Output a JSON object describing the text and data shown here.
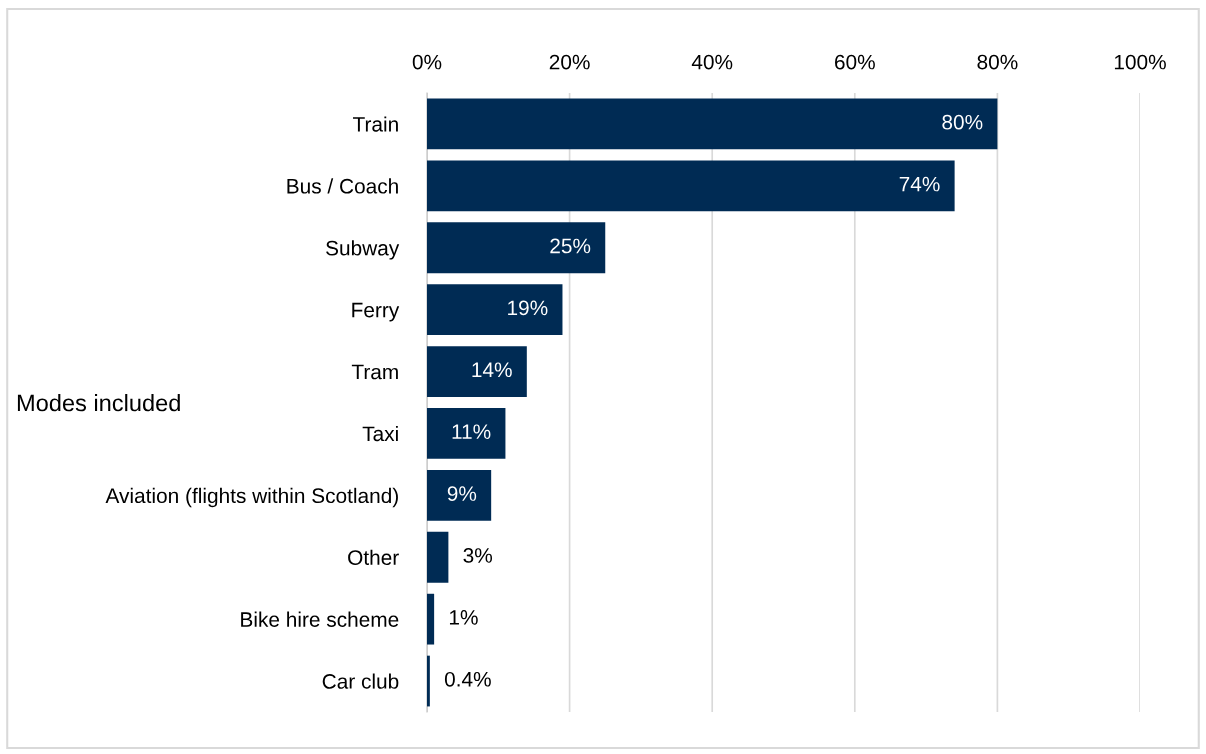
{
  "chart_data": {
    "type": "bar",
    "orientation": "horizontal",
    "ylabel": "Modes included",
    "categories": [
      "Train",
      "Bus / Coach",
      "Subway",
      "Ferry",
      "Tram",
      "Taxi",
      "Aviation (flights within Scotland)",
      "Other",
      "Bike hire scheme",
      "Car club"
    ],
    "values": [
      80,
      74,
      25,
      19,
      14,
      11,
      9,
      3,
      1,
      0.4
    ],
    "value_labels": [
      "80%",
      "74%",
      "25%",
      "19%",
      "14%",
      "11%",
      "9%",
      "3%",
      "1%",
      "0.4%"
    ],
    "color": "#002b54",
    "xlim": [
      0,
      100
    ],
    "xticks": [
      {
        "value": 0,
        "label": "0%"
      },
      {
        "value": 20,
        "label": "20%"
      },
      {
        "value": 40,
        "label": "40%"
      },
      {
        "value": 60,
        "label": "60%"
      },
      {
        "value": 80,
        "label": "80%"
      },
      {
        "value": 100,
        "label": "100%"
      }
    ],
    "grid": "x"
  }
}
